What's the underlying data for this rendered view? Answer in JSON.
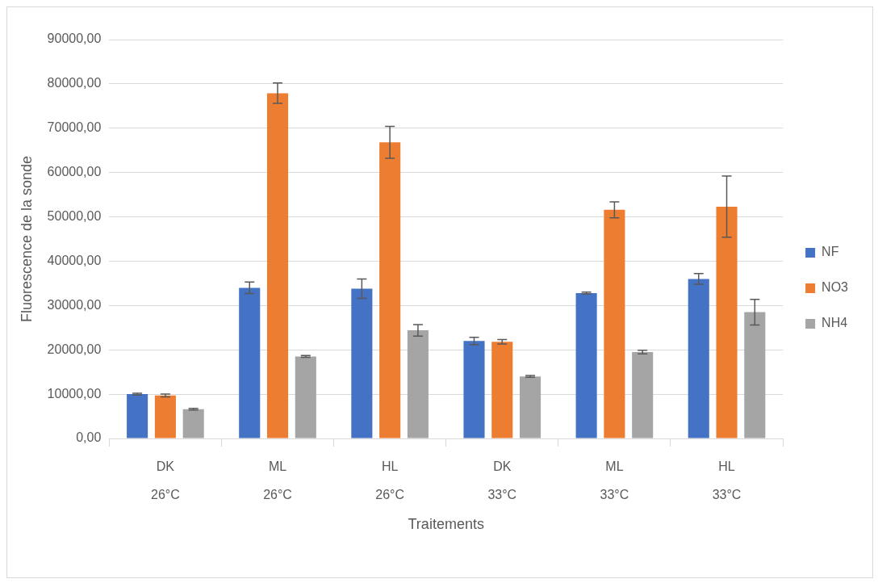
{
  "chart_data": {
    "type": "bar",
    "xlabel": "Traitements",
    "ylabel": "Fluorescence de la sonde",
    "categories": [
      "DK\n26°C",
      "ML\n26°C",
      "HL\n26°C",
      "DK\n33°C",
      "ML\n33°C",
      "HL\n33°C"
    ],
    "series": [
      {
        "name": "NF",
        "color": "#4472c4",
        "values": [
          10000,
          34000,
          33800,
          22000,
          32800,
          36000
        ],
        "errors": [
          200,
          1300,
          2200,
          800,
          200,
          1200
        ]
      },
      {
        "name": "NO3",
        "color": "#ed7d31",
        "values": [
          9700,
          77900,
          66800,
          21800,
          51600,
          52300
        ],
        "errors": [
          300,
          2300,
          3600,
          500,
          1800,
          6900
        ]
      },
      {
        "name": "NH4",
        "color": "#a5a5a5",
        "values": [
          6600,
          18500,
          24400,
          14000,
          19500,
          28500
        ],
        "errors": [
          200,
          200,
          1300,
          200,
          400,
          2900
        ]
      }
    ],
    "ylim": [
      0,
      90000
    ],
    "yticks": [
      {
        "value": 0,
        "label": "0,00"
      },
      {
        "value": 10000,
        "label": "10000,00"
      },
      {
        "value": 20000,
        "label": "20000,00"
      },
      {
        "value": 30000,
        "label": "30000,00"
      },
      {
        "value": 40000,
        "label": "40000,00"
      },
      {
        "value": 50000,
        "label": "50000,00"
      },
      {
        "value": 60000,
        "label": "60000,00"
      },
      {
        "value": 70000,
        "label": "70000,00"
      },
      {
        "value": 80000,
        "label": "80000,00"
      },
      {
        "value": 90000,
        "label": "90000,00"
      }
    ],
    "grid": "y",
    "legend": "right"
  }
}
